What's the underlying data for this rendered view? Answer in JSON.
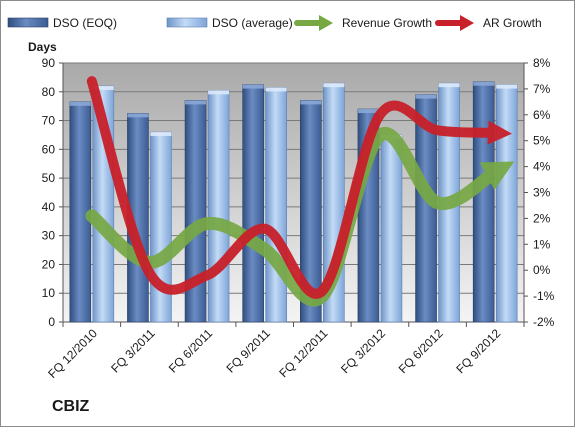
{
  "company": "CBIZ",
  "chart_data": {
    "type": "bar",
    "categories": [
      "FQ 12/2010",
      "FQ 3/2011",
      "FQ 6/2011",
      "FQ 9/2011",
      "FQ 12/2011",
      "FQ 3/2012",
      "FQ 6/2012",
      "FQ 9/2012"
    ],
    "ylabel": "Days",
    "ylim": [
      0,
      90
    ],
    "y_ticks": [
      0,
      10,
      20,
      30,
      40,
      50,
      60,
      70,
      80,
      90
    ],
    "y2lim": [
      -2,
      8
    ],
    "y2_ticks": [
      "-2%",
      "-1%",
      "0%",
      "1%",
      "2%",
      "3%",
      "4%",
      "5%",
      "6%",
      "7%",
      "8%"
    ],
    "grid": true,
    "legend_position": "top",
    "series": [
      {
        "name": "DSO (EOQ)",
        "type": "bar",
        "axis": "left",
        "color": "#4f6fa5",
        "values": [
          76.5,
          72.5,
          77,
          82.5,
          77,
          74,
          79,
          83.5
        ]
      },
      {
        "name": "DSO (average)",
        "type": "bar",
        "axis": "left",
        "color": "#8fb4e3",
        "values": [
          82,
          66,
          80.5,
          81.5,
          83,
          65,
          83,
          82.5
        ]
      },
      {
        "name": "Revenue Growth",
        "type": "line",
        "axis": "right",
        "color": "#77a844",
        "values": [
          2.1,
          0.3,
          1.8,
          0.8,
          -1.0,
          5.2,
          2.6,
          3.8
        ]
      },
      {
        "name": "AR Growth",
        "type": "line",
        "axis": "right",
        "color": "#c8202a",
        "values": [
          7.3,
          -0.1,
          -0.2,
          1.6,
          -0.8,
          6.0,
          5.4,
          5.3
        ]
      }
    ]
  }
}
